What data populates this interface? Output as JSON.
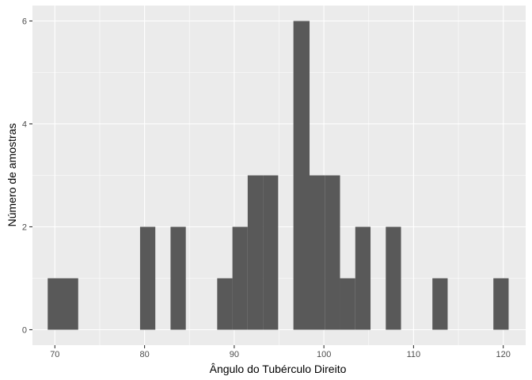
{
  "chart_data": {
    "type": "bar",
    "subtype": "histogram",
    "title": "",
    "xlabel": "Ângulo do Tubérculo Direito",
    "ylabel": "Número de amostras",
    "xlim": [
      67.5,
      122.5
    ],
    "ylim": [
      -0.3,
      6.3
    ],
    "x_ticks": [
      70,
      80,
      90,
      100,
      110,
      120
    ],
    "y_ticks": [
      0,
      2,
      4,
      6
    ],
    "grid": true,
    "legend": "none",
    "bin_width": 1.71,
    "bins": [
      {
        "x0": 69.2,
        "x1": 70.9,
        "count": 1
      },
      {
        "x0": 70.9,
        "x1": 72.6,
        "count": 1
      },
      {
        "x0": 79.5,
        "x1": 81.2,
        "count": 2
      },
      {
        "x0": 82.9,
        "x1": 84.6,
        "count": 2
      },
      {
        "x0": 88.1,
        "x1": 89.8,
        "count": 1
      },
      {
        "x0": 89.8,
        "x1": 91.5,
        "count": 2
      },
      {
        "x0": 91.5,
        "x1": 93.2,
        "count": 3
      },
      {
        "x0": 93.2,
        "x1": 94.9,
        "count": 3
      },
      {
        "x0": 96.6,
        "x1": 98.4,
        "count": 6
      },
      {
        "x0": 98.4,
        "x1": 100.1,
        "count": 3
      },
      {
        "x0": 100.1,
        "x1": 101.8,
        "count": 3
      },
      {
        "x0": 101.8,
        "x1": 103.5,
        "count": 1
      },
      {
        "x0": 103.5,
        "x1": 105.2,
        "count": 2
      },
      {
        "x0": 106.9,
        "x1": 108.6,
        "count": 2
      },
      {
        "x0": 112.1,
        "x1": 113.8,
        "count": 1
      },
      {
        "x0": 118.9,
        "x1": 120.6,
        "count": 1
      }
    ]
  },
  "colors": {
    "panel": "#ebebeb",
    "grid": "#ffffff",
    "bar": "#595959",
    "tick_text": "#4d4d4d",
    "tick_mark": "#333333",
    "title_text": "#000000"
  }
}
